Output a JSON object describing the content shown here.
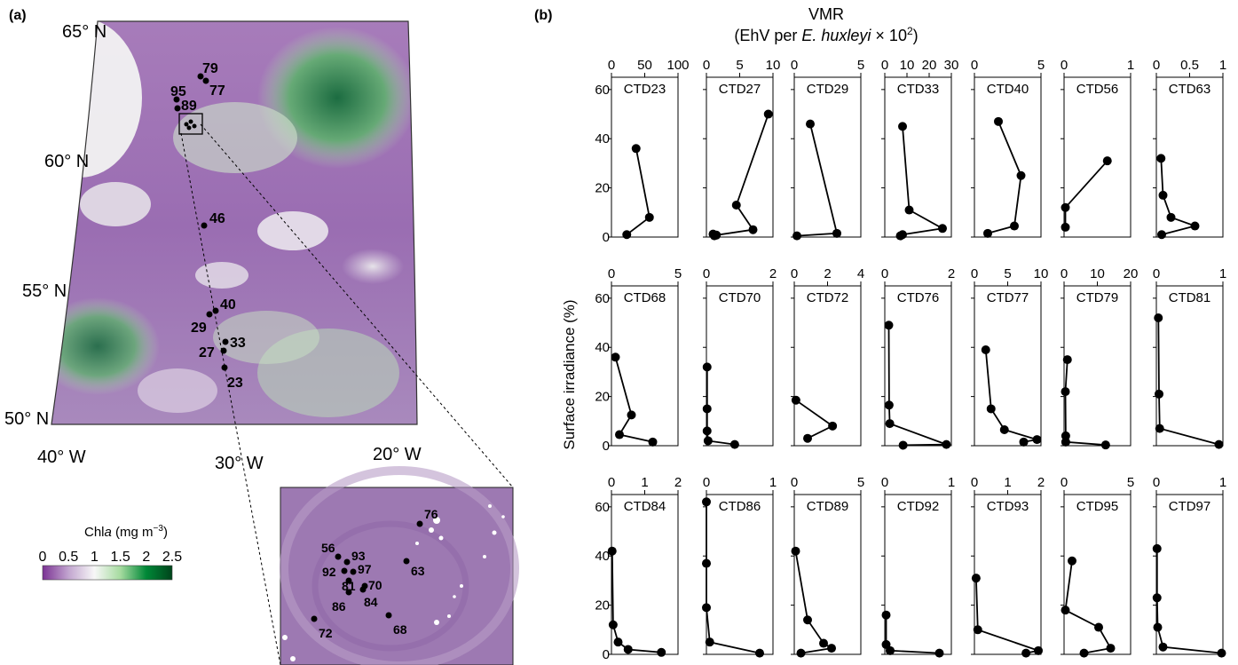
{
  "panel_a": {
    "tag": "(a)",
    "lat_labels": [
      {
        "name": "lat-65",
        "text": "65° N"
      },
      {
        "name": "lat-60",
        "text": "60° N"
      },
      {
        "name": "lat-55",
        "text": "55° N"
      },
      {
        "name": "lat-50",
        "text": "50° N"
      }
    ],
    "lon_labels": [
      {
        "name": "lon-40",
        "text": "40° W"
      },
      {
        "name": "lon-30",
        "text": "30° W"
      },
      {
        "name": "lon-20",
        "text": "20° W"
      }
    ],
    "stations": [
      "79",
      "77",
      "95",
      "89",
      "46",
      "40",
      "29",
      "33",
      "27",
      "23"
    ],
    "inset_stations": [
      "76",
      "56",
      "93",
      "92",
      "97",
      "63",
      "81",
      "70",
      "84",
      "86",
      "72",
      "68"
    ],
    "colorbar": {
      "label_prefix": "Chl",
      "label_italic": "a",
      "label_unit": " (mg m",
      "label_exp": "−3",
      "label_close": ")",
      "ticks": [
        "0",
        "0.5",
        "1",
        "1.5",
        "2",
        "2.5"
      ],
      "colors": [
        "#7b3294",
        "#c2a5cf",
        "#f7f7f7",
        "#a6dba0",
        "#008837",
        "#00441b"
      ]
    }
  },
  "panel_b": {
    "tag": "(b)",
    "title_line1": "VMR",
    "title_line2_prefix": "(EhV per ",
    "title_line2_italic": "E. huxleyi",
    "title_line2_suffix": " × 10",
    "title_line2_exp": "2",
    "title_line2_close": ")",
    "ylabel": "Surface irradiance (%)"
  },
  "chart_data": [
    {
      "type": "line",
      "panel": "b",
      "xlabel": "VMR (EhV per E. huxleyi × 10²)",
      "ylabel": "Surface irradiance (%)",
      "ylim": [
        0,
        65
      ],
      "yticks": [
        0,
        20,
        40,
        60
      ],
      "grid": false,
      "profiles": [
        {
          "name": "CTD23",
          "xlim": [
            0,
            100
          ],
          "xticks": [
            0,
            50,
            100
          ],
          "x": [
            23,
            57,
            37
          ],
          "y": [
            1,
            8,
            36
          ]
        },
        {
          "name": "CTD27",
          "xlim": [
            0,
            10
          ],
          "xticks": [
            0,
            5,
            10
          ],
          "x": [
            1.2,
            1.0,
            1.5,
            7.0,
            4.5,
            9.3
          ],
          "y": [
            0.5,
            1.2,
            0.8,
            3,
            13,
            50
          ]
        },
        {
          "name": "CTD29",
          "xlim": [
            0,
            5
          ],
          "xticks": [
            0,
            5
          ],
          "x": [
            0.2,
            3.2,
            1.2
          ],
          "y": [
            0.5,
            1.5,
            46
          ]
        },
        {
          "name": "CTD33",
          "xlim": [
            0,
            30
          ],
          "xticks": [
            0,
            10,
            20,
            30
          ],
          "x": [
            7,
            8,
            26,
            11,
            8
          ],
          "y": [
            0.5,
            1,
            3.5,
            11,
            45
          ]
        },
        {
          "name": "CTD40",
          "xlim": [
            0,
            5
          ],
          "xticks": [
            0,
            5
          ],
          "x": [
            1.0,
            3.0,
            3.5,
            1.8
          ],
          "y": [
            1.5,
            4.5,
            25,
            47
          ]
        },
        {
          "name": "CTD56",
          "xlim": [
            0,
            1
          ],
          "xticks": [
            0,
            1
          ],
          "x": [
            0.02,
            0.02,
            0.65
          ],
          "y": [
            4,
            12,
            31
          ]
        },
        {
          "name": "CTD63",
          "xlim": [
            0,
            1
          ],
          "xticks": [
            0,
            0.5,
            1
          ],
          "x": [
            0.08,
            0.58,
            0.22,
            0.1,
            0.07
          ],
          "y": [
            1,
            4.5,
            8,
            17,
            32
          ]
        },
        {
          "name": "CTD68",
          "xlim": [
            0,
            5
          ],
          "xticks": [
            0,
            5
          ],
          "x": [
            3.1,
            0.6,
            1.5,
            0.3
          ],
          "y": [
            1.5,
            4.5,
            12.5,
            36
          ]
        },
        {
          "name": "CTD70",
          "xlim": [
            0,
            2
          ],
          "xticks": [
            0,
            2
          ],
          "x": [
            0.85,
            0.05,
            0.02,
            0.02,
            0.02
          ],
          "y": [
            0.5,
            2,
            6,
            15,
            32
          ]
        },
        {
          "name": "CTD72",
          "xlim": [
            0,
            4
          ],
          "xticks": [
            0,
            2,
            4
          ],
          "x": [
            0.8,
            2.3,
            0.1
          ],
          "y": [
            3,
            8,
            18.5
          ]
        },
        {
          "name": "CTD76",
          "xlim": [
            0,
            2
          ],
          "xticks": [
            0,
            2
          ],
          "x": [
            0.55,
            1.85,
            0.15,
            0.13,
            0.12
          ],
          "y": [
            0.2,
            0.5,
            9,
            16.5,
            49
          ]
        },
        {
          "name": "CTD77",
          "xlim": [
            0,
            10
          ],
          "xticks": [
            0,
            5,
            10
          ],
          "x": [
            7.4,
            9.4,
            4.5,
            2.5,
            1.7
          ],
          "y": [
            1.5,
            2.5,
            6.5,
            15,
            39
          ]
        },
        {
          "name": "CTD79",
          "xlim": [
            0,
            20
          ],
          "xticks": [
            0,
            10,
            20
          ],
          "x": [
            12.5,
            0.5,
            0.5,
            0.4,
            1.0
          ],
          "y": [
            0.3,
            1.5,
            4,
            22,
            35
          ]
        },
        {
          "name": "CTD81",
          "xlim": [
            0,
            1
          ],
          "xticks": [
            0,
            1
          ],
          "x": [
            0.94,
            0.05,
            0.04,
            0.03
          ],
          "y": [
            0.5,
            7,
            21,
            52
          ]
        },
        {
          "name": "CTD84",
          "xlim": [
            0,
            2
          ],
          "xticks": [
            0,
            1,
            2
          ],
          "x": [
            1.5,
            0.5,
            0.2,
            0.05,
            0.02
          ],
          "y": [
            0.8,
            2,
            5,
            12,
            42
          ]
        },
        {
          "name": "CTD86",
          "xlim": [
            0,
            1
          ],
          "xticks": [
            0,
            1
          ],
          "x": [
            0.8,
            0.05,
            0.0,
            0.0,
            0.0
          ],
          "y": [
            0.5,
            5,
            19,
            37,
            62
          ]
        },
        {
          "name": "CTD89",
          "xlim": [
            0,
            5
          ],
          "xticks": [
            0,
            5
          ],
          "x": [
            0.5,
            2.8,
            2.2,
            1.0,
            0.1
          ],
          "y": [
            0.5,
            2.5,
            4.5,
            14,
            42
          ]
        },
        {
          "name": "CTD92",
          "xlim": [
            0,
            1
          ],
          "xticks": [
            0,
            1
          ],
          "x": [
            0.82,
            0.08,
            0.02,
            0.02
          ],
          "y": [
            0.5,
            1.5,
            4,
            16
          ]
        },
        {
          "name": "CTD93",
          "xlim": [
            0,
            2
          ],
          "xticks": [
            0,
            1,
            2
          ],
          "x": [
            1.55,
            1.92,
            0.1,
            0.05
          ],
          "y": [
            0.5,
            1.5,
            10,
            31
          ]
        },
        {
          "name": "CTD95",
          "xlim": [
            0,
            5
          ],
          "xticks": [
            0,
            5
          ],
          "x": [
            1.5,
            3.5,
            2.6,
            0.1,
            0.6
          ],
          "y": [
            0.5,
            2.5,
            11,
            18,
            38
          ]
        },
        {
          "name": "CTD97",
          "xlim": [
            0,
            1
          ],
          "xticks": [
            0,
            1
          ],
          "x": [
            0.98,
            0.1,
            0.02,
            0.01,
            0.01
          ],
          "y": [
            0.5,
            3,
            11,
            23,
            43
          ]
        }
      ]
    }
  ]
}
